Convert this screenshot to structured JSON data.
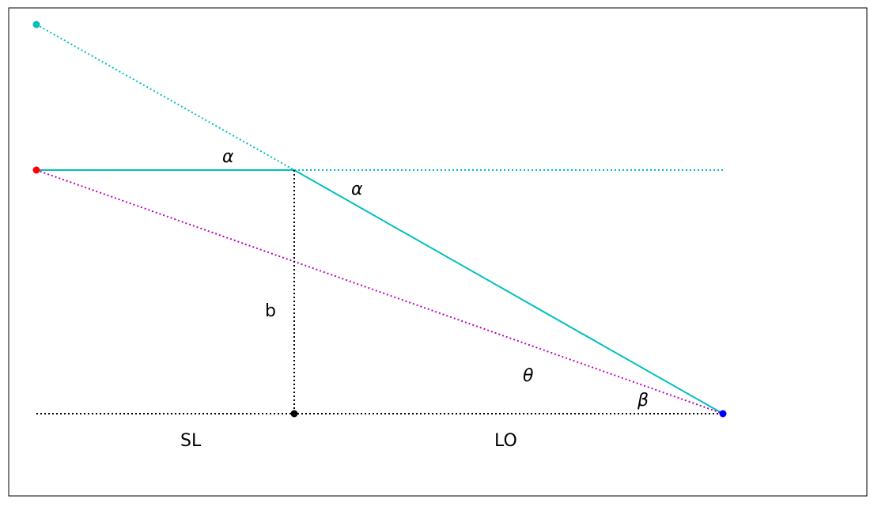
{
  "diagram": {
    "labels": {
      "alpha_top": "α",
      "alpha_right": "α",
      "b": "b",
      "theta": "θ",
      "beta": "β",
      "sl": "SL",
      "lo": "LO"
    },
    "colors": {
      "cyan": "#00bfbf",
      "magenta": "#bf00bf",
      "black": "#000000",
      "red": "#ff0000",
      "blue": "#0000ff",
      "frame": "#000000"
    },
    "points": [
      {
        "name": "cyan-point",
        "color": "#00bfbf"
      },
      {
        "name": "red-point",
        "color": "#ff0000"
      },
      {
        "name": "black-point",
        "color": "#000000"
      },
      {
        "name": "blue-point",
        "color": "#0000ff"
      }
    ]
  }
}
